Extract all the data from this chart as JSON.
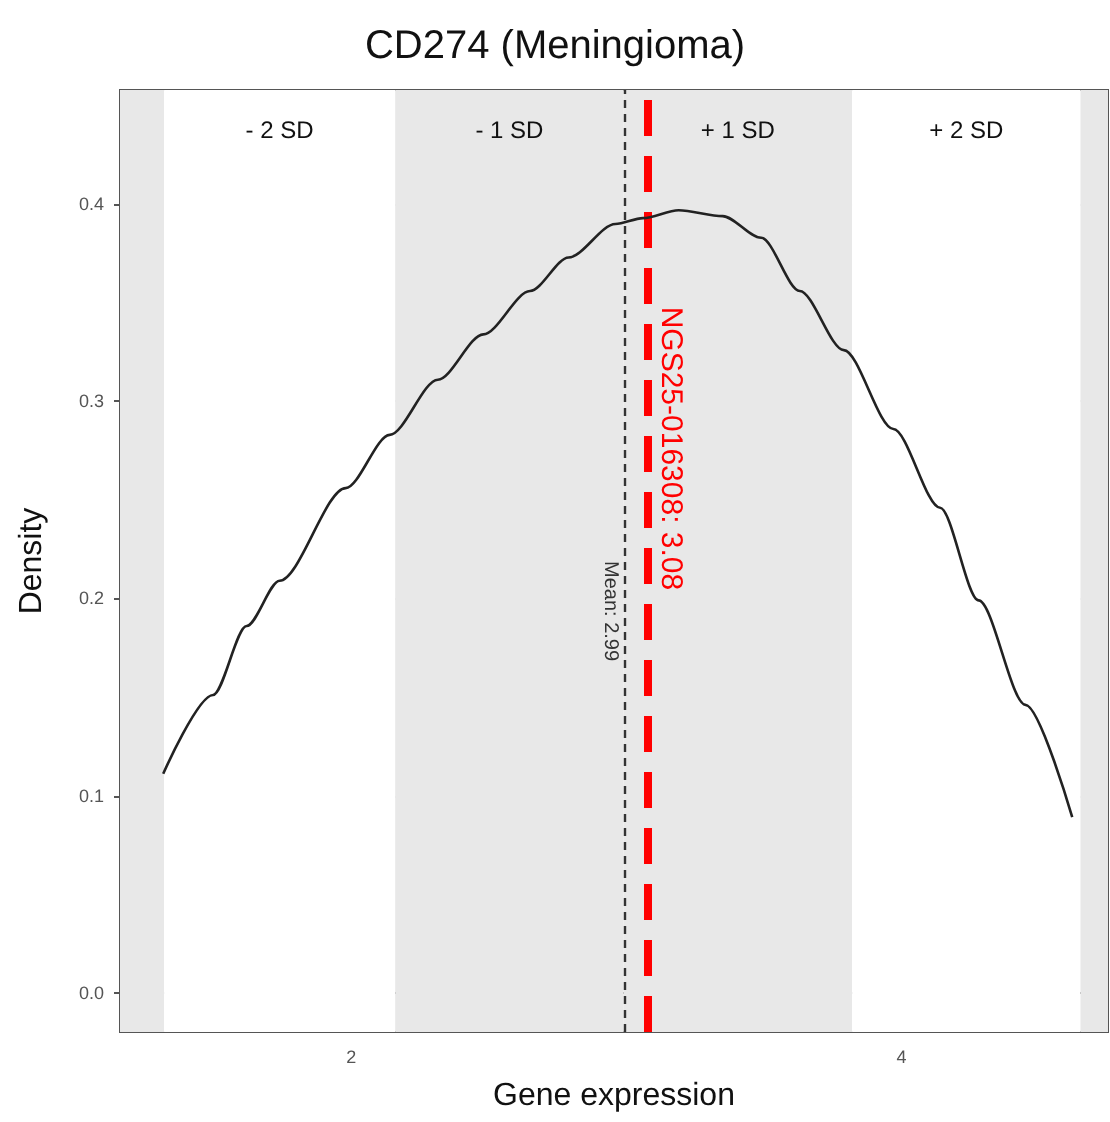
{
  "chart_data": {
    "type": "line",
    "title": "CD274 (Meningioma)",
    "xlabel": "Gene expression",
    "ylabel": "Density",
    "x": [
      1.317,
      1.498,
      1.62,
      1.74,
      1.98,
      2.14,
      2.315,
      2.48,
      2.65,
      2.79,
      2.96,
      3.06,
      3.19,
      3.35,
      3.49,
      3.63,
      3.79,
      3.97,
      4.14,
      4.28,
      4.45,
      4.62
    ],
    "series": [
      {
        "color": "#222222",
        "values": [
          0.111,
          0.151,
          0.186,
          0.209,
          0.256,
          0.283,
          0.311,
          0.334,
          0.356,
          0.373,
          0.39,
          0.393,
          0.397,
          0.394,
          0.383,
          0.356,
          0.326,
          0.286,
          0.246,
          0.199,
          0.146,
          0.089
        ]
      }
    ],
    "xlim": [
      1.16,
      4.75
    ],
    "ylim": [
      -0.02,
      0.458
    ],
    "xticks": [
      2,
      4
    ],
    "yticks": [
      {
        "value": 0,
        "label": "0.0"
      },
      0.1,
      0.2,
      0.3,
      0.4
    ],
    "grid": true,
    "marker": "none",
    "line_style": "solid",
    "bands": [
      {
        "axis": "x",
        "from": 1.16,
        "to": 1.32,
        "color": "#e8e8e8"
      },
      {
        "axis": "x",
        "from": 1.32,
        "to": 2.16,
        "label": "- 2 SD",
        "color": "#ffffff"
      },
      {
        "axis": "x",
        "from": 2.16,
        "to": 2.99,
        "label": "- 1 SD",
        "color": "#e8e8e8"
      },
      {
        "axis": "x",
        "from": 2.99,
        "to": 3.82,
        "label": "+ 1 SD",
        "color": "#e8e8e8"
      },
      {
        "axis": "x",
        "from": 3.82,
        "to": 4.65,
        "label": "+ 2 SD",
        "color": "#ffffff"
      },
      {
        "axis": "x",
        "from": 4.65,
        "to": 4.75,
        "color": "#e8e8e8"
      }
    ],
    "ref_lines": [
      {
        "axis": "x",
        "value": 2.99,
        "label": "Mean: 2.99",
        "color": "#333333",
        "line_style": "dashed"
      },
      {
        "axis": "x",
        "value": 3.08,
        "label": "NGS25-016308: 3.08",
        "color": "#ff0000",
        "line_style": "longdash"
      }
    ]
  }
}
